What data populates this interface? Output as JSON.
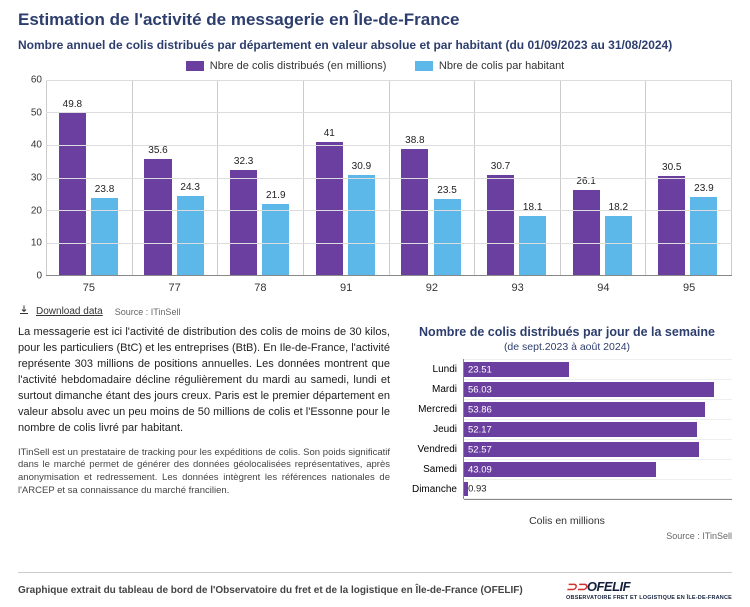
{
  "title": "Estimation de l'activité de messagerie en Île-de-France",
  "subtitle": "Nombre annuel de colis distribués par département en valeur absolue et par habitant (du 01/09/2023 au 31/08/2024)",
  "legend": {
    "s1_label": "Nbre de colis distribués (en millions)",
    "s1_color": "#6a3fa0",
    "s2_label": "Nbre de colis par habitant",
    "s2_color": "#5bb8e8"
  },
  "chart1": {
    "type": "grouped-bar",
    "y_max": 60,
    "y_ticks": [
      0,
      10,
      20,
      30,
      40,
      50,
      60
    ],
    "categories": [
      "75",
      "77",
      "78",
      "91",
      "92",
      "93",
      "94",
      "95"
    ],
    "series1": [
      49.8,
      35.6,
      32.3,
      41,
      38.8,
      30.7,
      26.1,
      30.5
    ],
    "series2": [
      23.8,
      24.3,
      21.9,
      30.9,
      23.5,
      18.1,
      18.2,
      23.9
    ],
    "grid_color": "#dddddd",
    "axis_color": "#888888"
  },
  "download": {
    "label": "Download data",
    "source_prefix": "Source :",
    "source": "ITinSell"
  },
  "para1": "La messagerie est ici l'activité de distribution des colis de moins de 30 kilos, pour les particuliers (BtC) et les entreprises (BtB). En Ile-de-France, l'activité représente 303 millions de positions annuelles. Les données montrent que l'activité hebdomadaire décline régulièrement du mardi au samedi, lundi et surtout dimanche étant des jours creux. Paris est le premier département en valeur absolu avec un peu moins de 50 millions de colis et l'Essonne pour le nombre de colis livré par habitant.",
  "para2": "ITinSell est un prestataire de tracking pour les expéditions de colis. Son poids significatif dans le marché permet de générer des données géolocalisées représentatives, après anonymisation et redressement. Les données intègrent les références nationales de l'ARCEP et sa connaissance du marché francilien.",
  "chart2": {
    "title": "Nombre de colis distribués par jour de la semaine",
    "subtitle": "(de sept.2023 à août 2024)",
    "type": "horizontal-bar",
    "x_max": 60,
    "categories": [
      "Lundi",
      "Mardi",
      "Mercredi",
      "Jeudi",
      "Vendredi",
      "Samedi",
      "Dimanche"
    ],
    "values": [
      23.51,
      56.03,
      53.86,
      52.17,
      52.57,
      43.09,
      0.93
    ],
    "bar_color": "#6a3fa0",
    "x_label": "Colis en millions",
    "source": "Source : ITinSell"
  },
  "footer": {
    "text": "Graphique extrait du tableau de bord de l'Observatoire du fret et de la logistique en Île-de-France (OFELIF)",
    "logo_main": "OFELIF",
    "logo_sub": "OBSERVATOIRE FRET ET LOGISTIQUE EN ÎLE-DE-FRANCE"
  }
}
